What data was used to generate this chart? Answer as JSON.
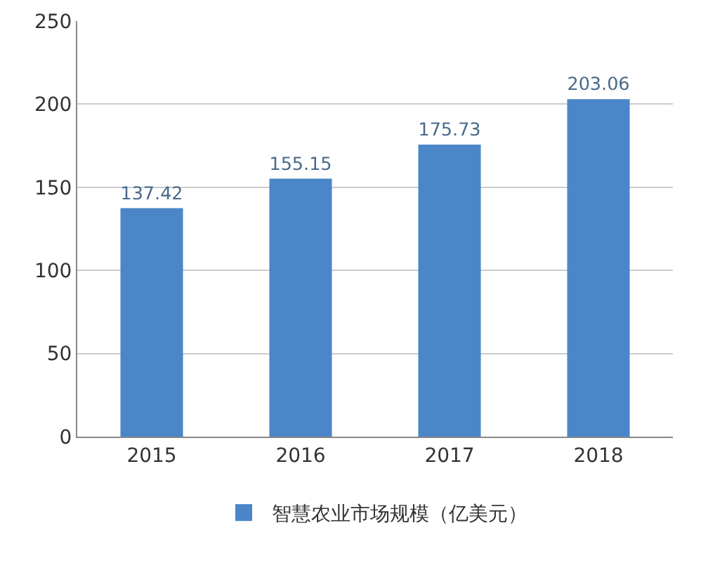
{
  "chart_data": {
    "type": "bar",
    "categories": [
      "2015",
      "2016",
      "2017",
      "2018"
    ],
    "series": [
      {
        "name": "智慧农业市场规模（亿美元）",
        "color": "#4a86c8",
        "values": [
          137.42,
          155.15,
          175.73,
          203.06
        ]
      }
    ],
    "ylim": [
      0,
      250
    ],
    "yticks": [
      0,
      50,
      100,
      150,
      200,
      250
    ],
    "grid": "y",
    "data_labels": true,
    "legend": "bottom"
  }
}
